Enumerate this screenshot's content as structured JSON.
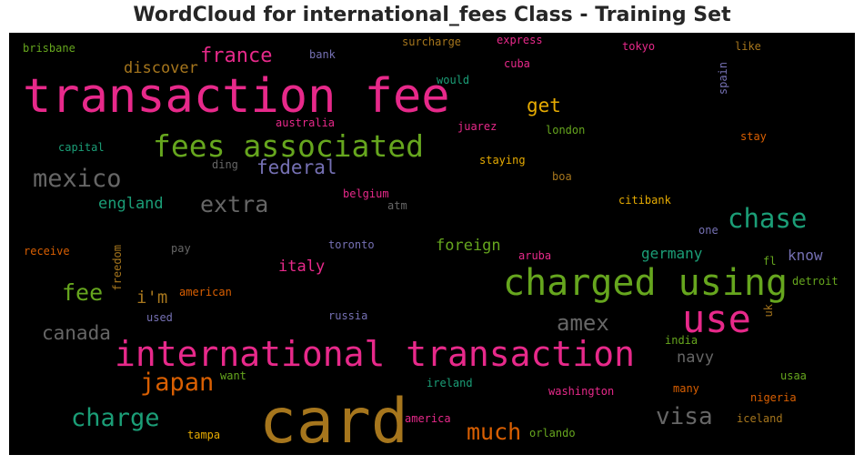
{
  "title": "WordCloud for international_fees Class - Training Set",
  "colors": {
    "pink": "#e7298a",
    "green": "#66a61e",
    "teal": "#1b9e77",
    "gold": "#e6ab02",
    "brown": "#a6761d",
    "orange": "#d95f02",
    "purple": "#7570b3",
    "gray": "#666666"
  },
  "words": [
    "card",
    "transaction fee",
    "international transaction",
    "charged using",
    "fees associated",
    "use",
    "chase",
    "mexico",
    "extra",
    "japan",
    "charge",
    "visa",
    "much",
    "amex",
    "france",
    "federal",
    "get",
    "fee",
    "canada",
    "england",
    "discover",
    "i'm",
    "foreign",
    "italy",
    "germany",
    "know",
    "navy",
    "express",
    "surcharge",
    "brisbane",
    "bank",
    "tokyo",
    "like",
    "cuba",
    "would",
    "spain",
    "australia",
    "juarez",
    "london",
    "capital",
    "stay",
    "staying",
    "ding",
    "boa",
    "belgium",
    "citibank",
    "atm",
    "one",
    "receive",
    "pay",
    "toronto",
    "aruba",
    "fl",
    "freedom",
    "american",
    "detroit",
    "uk",
    "used",
    "russia",
    "india",
    "want",
    "ireland",
    "usaa",
    "washington",
    "many",
    "nigeria",
    "america",
    "tampa",
    "orlando",
    "iceland"
  ]
}
